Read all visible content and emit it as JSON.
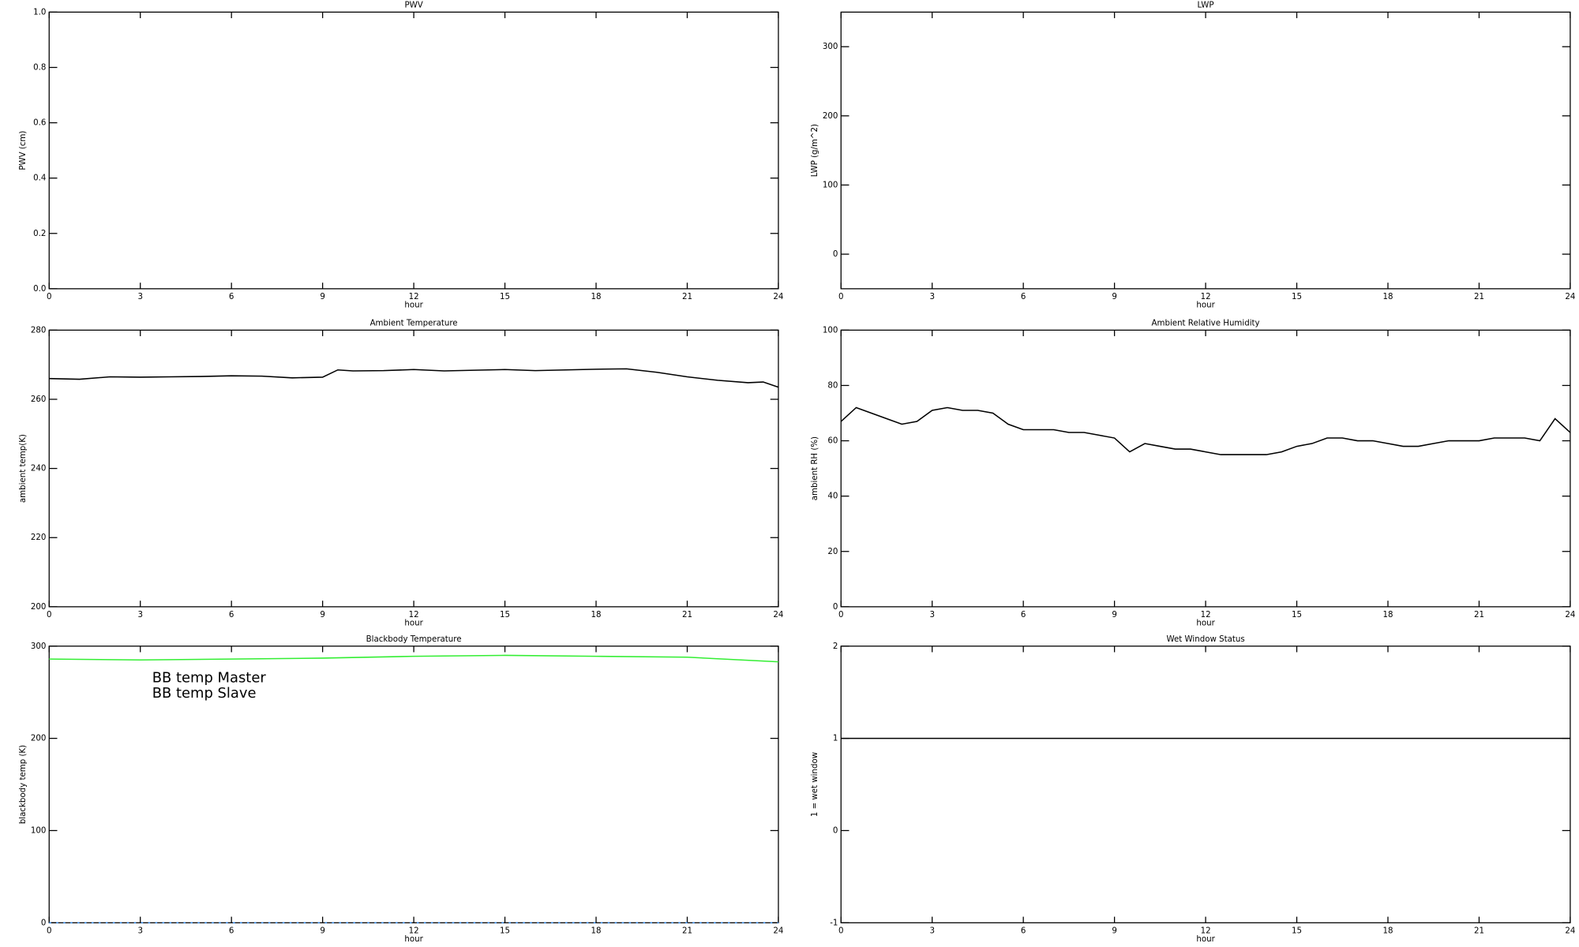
{
  "chart_data": [
    {
      "type": "line",
      "title": "PWV",
      "xlabel": "hour",
      "ylabel": "PWV (cm)",
      "xlim": [
        0,
        24
      ],
      "xticks": [
        0,
        3,
        6,
        9,
        12,
        15,
        18,
        21,
        24
      ],
      "ylim": [
        0,
        1
      ],
      "yticks": [
        {
          "value": 0,
          "label": "0.0"
        },
        0.2,
        0.4,
        0.6,
        0.8,
        {
          "value": 1,
          "label": "1.0"
        }
      ]
    },
    {
      "type": "line",
      "title": "LWP",
      "xlabel": "hour",
      "ylabel": "LWP (g/m^2)",
      "xlim": [
        0,
        24
      ],
      "xticks": [
        0,
        3,
        6,
        9,
        12,
        15,
        18,
        21,
        24
      ],
      "ylim": [
        -50,
        350
      ],
      "yticks": [
        0,
        100,
        200,
        300
      ]
    },
    {
      "type": "line",
      "title": "Ambient Temperature",
      "xlabel": "hour",
      "ylabel": "ambient temp(K)",
      "xlim": [
        0,
        24
      ],
      "xticks": [
        0,
        3,
        6,
        9,
        12,
        15,
        18,
        21,
        24
      ],
      "ylim": [
        200,
        280
      ],
      "yticks": [
        200,
        220,
        240,
        260,
        280
      ],
      "series": [
        {
          "color": "#000000",
          "x": [
            0,
            1,
            2,
            3,
            4,
            5,
            6,
            7,
            8,
            9,
            9.5,
            10,
            11,
            12,
            13,
            14,
            15,
            16,
            17,
            18,
            19,
            20,
            21,
            22,
            23,
            23.5,
            24
          ],
          "values": [
            266,
            265.8,
            266.5,
            266.4,
            266.5,
            266.6,
            266.8,
            266.7,
            266.2,
            266.4,
            268.5,
            268.2,
            268.3,
            268.6,
            268.2,
            268.4,
            268.6,
            268.3,
            268.5,
            268.7,
            268.8,
            267.8,
            266.5,
            265.5,
            264.8,
            265,
            263.5
          ]
        }
      ]
    },
    {
      "type": "line",
      "title": "Ambient Relative Humidity",
      "xlabel": "hour",
      "ylabel": "ambient RH (%)",
      "xlim": [
        0,
        24
      ],
      "xticks": [
        0,
        3,
        6,
        9,
        12,
        15,
        18,
        21,
        24
      ],
      "ylim": [
        0,
        100
      ],
      "yticks": [
        0,
        20,
        40,
        60,
        80,
        100
      ],
      "series": [
        {
          "color": "#000000",
          "x": [
            0,
            0.5,
            1,
            1.5,
            2,
            2.5,
            3,
            3.5,
            4,
            4.5,
            5,
            5.5,
            6,
            6.5,
            7,
            7.5,
            8,
            8.5,
            9,
            9.5,
            10,
            10.5,
            11,
            11.5,
            12,
            12.5,
            13,
            13.5,
            14,
            14.5,
            15,
            15.5,
            16,
            16.5,
            17,
            17.5,
            18,
            18.5,
            19,
            19.5,
            20,
            20.5,
            21,
            21.5,
            22,
            22.5,
            23,
            23.5,
            24
          ],
          "values": [
            67,
            72,
            70,
            68,
            66,
            67,
            71,
            72,
            71,
            71,
            70,
            66,
            64,
            64,
            64,
            63,
            63,
            62,
            61,
            56,
            59,
            58,
            57,
            57,
            56,
            55,
            55,
            55,
            55,
            56,
            58,
            59,
            61,
            61,
            60,
            60,
            59,
            58,
            58,
            59,
            60,
            60,
            60,
            61,
            61,
            61,
            60,
            68,
            63
          ]
        }
      ]
    },
    {
      "type": "line",
      "title": "Blackbody Temperature",
      "xlabel": "hour",
      "ylabel": "blackbody temp (K)",
      "xlim": [
        0,
        24
      ],
      "xticks": [
        0,
        3,
        6,
        9,
        12,
        15,
        18,
        21,
        24
      ],
      "ylim": [
        0,
        300
      ],
      "yticks": [
        0,
        100,
        200,
        300
      ],
      "legend": "upper left",
      "series": [
        {
          "name": "BB temp Master",
          "color": "#3b8eea",
          "dashed": true,
          "x": [
            0,
            3,
            6,
            9,
            12,
            15,
            18,
            21,
            24
          ],
          "values": [
            0,
            0,
            0,
            0,
            0,
            0,
            0,
            0,
            0
          ]
        },
        {
          "name": "BB temp Slave",
          "color": "#33ee33",
          "x": [
            0,
            3,
            6,
            9,
            12,
            15,
            18,
            21,
            24
          ],
          "values": [
            286,
            285,
            286,
            287,
            289,
            290,
            289,
            288,
            283
          ]
        }
      ]
    },
    {
      "type": "line",
      "title": "Wet Window Status",
      "xlabel": "hour",
      "ylabel": "1 = wet window",
      "xlim": [
        0,
        24
      ],
      "xticks": [
        0,
        3,
        6,
        9,
        12,
        15,
        18,
        21,
        24
      ],
      "ylim": [
        -1,
        2
      ],
      "yticks": [
        -1,
        0,
        1,
        2
      ],
      "series": [
        {
          "color": "#000000",
          "x": [
            0,
            24
          ],
          "values": [
            1,
            1
          ]
        }
      ]
    }
  ]
}
